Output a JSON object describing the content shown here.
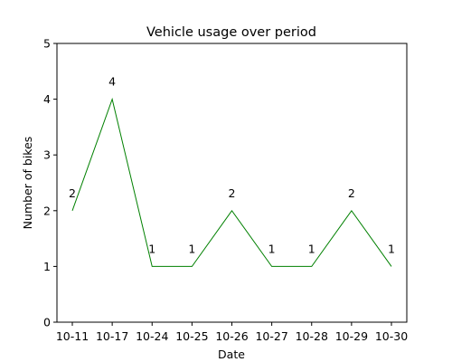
{
  "chart_data": {
    "type": "line",
    "title": "Vehicle usage over period",
    "xlabel": "Date",
    "ylabel": "Number of bikes",
    "categories": [
      "10-11",
      "10-17",
      "10-24",
      "10-25",
      "10-26",
      "10-27",
      "10-28",
      "10-29",
      "10-30"
    ],
    "values": [
      2,
      4,
      1,
      1,
      2,
      1,
      1,
      2,
      1
    ],
    "ylim": [
      0,
      5
    ],
    "yticks": [
      0,
      1,
      2,
      3,
      4,
      5
    ],
    "grid": false,
    "line_color": "#008000",
    "data_labels": [
      "2",
      "4",
      "1",
      "1",
      "2",
      "1",
      "1",
      "2",
      "1"
    ]
  }
}
